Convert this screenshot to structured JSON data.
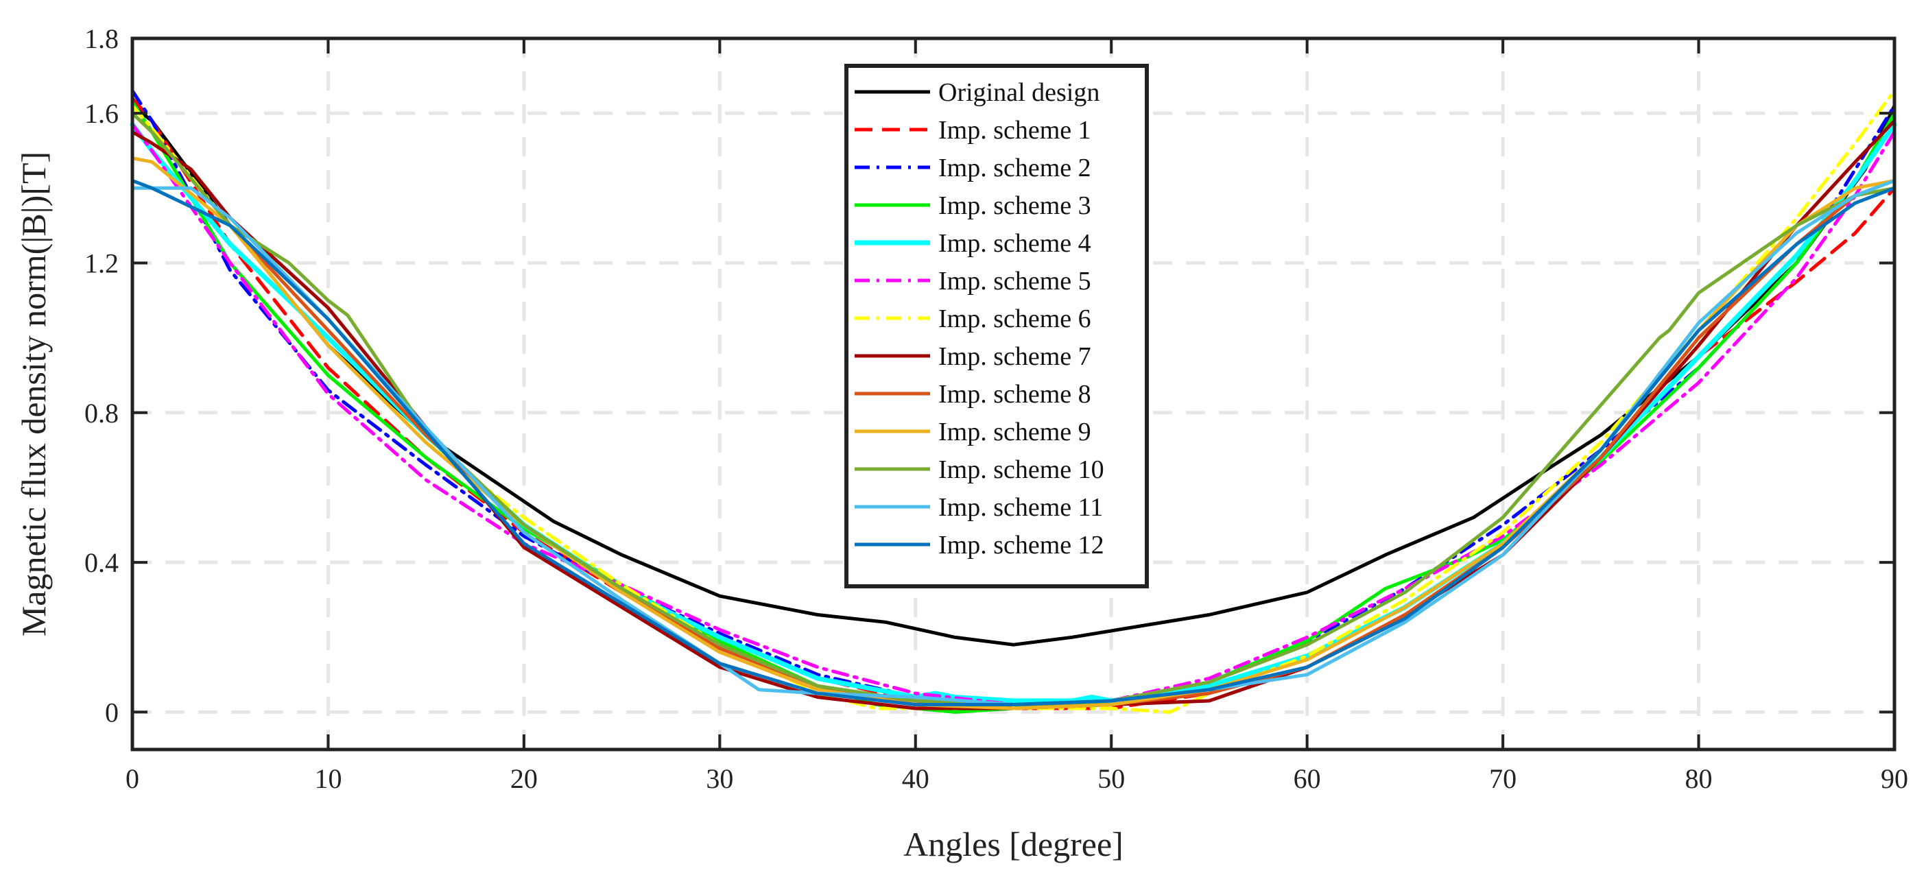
{
  "chart_data": {
    "type": "line",
    "title": "",
    "xlabel": "Angles [degree]",
    "ylabel": "Magnetic flux density norm(|B|)[T]",
    "xlim": [
      0,
      90
    ],
    "ylim": [
      -0.1,
      1.8
    ],
    "xticks": [
      0,
      10,
      20,
      30,
      40,
      50,
      60,
      70,
      80,
      90
    ],
    "xtick_labels": [
      "0",
      "10",
      "20",
      "30",
      "40",
      "50",
      "60",
      "70",
      "80",
      "90"
    ],
    "yticks": [
      0,
      0.4,
      0.8,
      1.2,
      1.6,
      1.8
    ],
    "ytick_labels": [
      "0",
      "0.4",
      "0.8",
      "1.2",
      "1.6",
      "1.8"
    ],
    "grid": true,
    "legend_position": "top-center",
    "series": [
      {
        "name": "Original design",
        "color": "#000000",
        "dash": "solid",
        "x": [
          0,
          1,
          5,
          10,
          15,
          21.5,
          25,
          30,
          35,
          38.5,
          42,
          45,
          48,
          51.5,
          55,
          60,
          64,
          68.5,
          72,
          75,
          80,
          85,
          88.5,
          90
        ],
        "y": [
          1.62,
          1.58,
          1.3,
          0.98,
          0.74,
          0.51,
          0.42,
          0.31,
          0.26,
          0.24,
          0.2,
          0.18,
          0.2,
          0.23,
          0.26,
          0.32,
          0.42,
          0.52,
          0.64,
          0.74,
          0.95,
          1.2,
          1.45,
          1.62
        ]
      },
      {
        "name": "Imp. scheme 1",
        "color": "#ff0000",
        "dash": "dashed",
        "x": [
          0,
          1,
          5,
          10,
          15,
          20,
          25,
          30,
          35,
          40,
          45,
          50,
          55,
          60,
          65,
          70,
          75,
          80,
          85,
          88,
          90
        ],
        "y": [
          1.64,
          1.58,
          1.25,
          0.92,
          0.68,
          0.48,
          0.32,
          0.2,
          0.09,
          0.03,
          0.01,
          0.01,
          0.05,
          0.15,
          0.28,
          0.45,
          0.68,
          0.95,
          1.15,
          1.28,
          1.4
        ]
      },
      {
        "name": "Imp. scheme 2",
        "color": "#0000ff",
        "dash": "dashdot",
        "x": [
          0,
          1,
          5,
          10,
          15,
          20,
          25,
          30,
          35,
          40,
          45,
          50,
          55,
          60,
          65,
          70,
          75,
          80,
          85,
          88,
          90
        ],
        "y": [
          1.66,
          1.58,
          1.18,
          0.86,
          0.66,
          0.47,
          0.33,
          0.21,
          0.1,
          0.04,
          0.02,
          0.03,
          0.08,
          0.19,
          0.33,
          0.5,
          0.7,
          0.92,
          1.2,
          1.45,
          1.62
        ]
      },
      {
        "name": "Imp. scheme 3",
        "color": "#00ee00",
        "dash": "solid",
        "x": [
          0,
          1,
          5,
          10,
          15,
          20,
          25,
          30,
          35,
          38,
          42,
          45,
          50,
          55,
          60,
          64,
          68,
          70,
          75,
          80,
          85,
          88,
          90
        ],
        "y": [
          1.63,
          1.55,
          1.2,
          0.9,
          0.68,
          0.49,
          0.34,
          0.19,
          0.07,
          0.02,
          0.0,
          0.01,
          0.03,
          0.08,
          0.19,
          0.33,
          0.41,
          0.46,
          0.67,
          0.92,
          1.2,
          1.42,
          1.6
        ]
      },
      {
        "name": "Imp. scheme 4",
        "color": "#00ffff",
        "dash": "solid",
        "x": [
          0,
          1,
          5,
          10,
          15,
          20,
          25,
          30,
          35,
          40,
          41,
          42,
          45,
          48,
          49,
          50,
          55,
          60,
          65,
          70,
          75,
          80,
          85,
          88,
          90
        ],
        "y": [
          1.57,
          1.5,
          1.25,
          1.0,
          0.74,
          0.5,
          0.33,
          0.2,
          0.09,
          0.04,
          0.05,
          0.04,
          0.03,
          0.03,
          0.04,
          0.03,
          0.07,
          0.15,
          0.28,
          0.45,
          0.68,
          0.95,
          1.22,
          1.42,
          1.57
        ]
      },
      {
        "name": "Imp. scheme 5",
        "color": "#ff00ff",
        "dash": "dashdot",
        "x": [
          0,
          1,
          5,
          10,
          15,
          20,
          25,
          30,
          35,
          40,
          45,
          50,
          55,
          60,
          65,
          70,
          75,
          80,
          85,
          88,
          90
        ],
        "y": [
          1.57,
          1.5,
          1.2,
          0.85,
          0.62,
          0.45,
          0.34,
          0.22,
          0.12,
          0.05,
          0.02,
          0.03,
          0.09,
          0.2,
          0.33,
          0.47,
          0.66,
          0.88,
          1.16,
          1.38,
          1.55
        ]
      },
      {
        "name": "Imp. scheme 6",
        "color": "#ffff00",
        "dash": "dashdot",
        "x": [
          0,
          1,
          5,
          10,
          15,
          20,
          25,
          30,
          35,
          38,
          45,
          50,
          53,
          55,
          60,
          65,
          70,
          75,
          80,
          85,
          88,
          90
        ],
        "y": [
          1.62,
          1.56,
          1.3,
          0.98,
          0.72,
          0.52,
          0.34,
          0.18,
          0.05,
          0.01,
          0.01,
          0.01,
          0.0,
          0.05,
          0.15,
          0.3,
          0.48,
          0.72,
          1.02,
          1.32,
          1.52,
          1.66
        ]
      },
      {
        "name": "Imp. scheme 7",
        "color": "#a00000",
        "dash": "solid",
        "x": [
          0,
          1,
          3,
          5,
          10,
          15,
          20,
          25,
          30,
          35,
          40,
          45,
          50,
          55,
          60,
          65,
          70,
          75,
          80,
          85,
          88,
          90
        ],
        "y": [
          1.55,
          1.52,
          1.45,
          1.32,
          1.08,
          0.76,
          0.44,
          0.28,
          0.12,
          0.04,
          0.01,
          0.01,
          0.02,
          0.03,
          0.12,
          0.26,
          0.42,
          0.68,
          0.98,
          1.3,
          1.47,
          1.58
        ]
      },
      {
        "name": "Imp. scheme 8",
        "color": "#d95319",
        "dash": "solid",
        "x": [
          0,
          1,
          5,
          10,
          15,
          20,
          25,
          30,
          35,
          40,
          45,
          50,
          55,
          60,
          65,
          70,
          75,
          80,
          85,
          88,
          90
        ],
        "y": [
          1.6,
          1.55,
          1.3,
          1.02,
          0.74,
          0.5,
          0.32,
          0.17,
          0.07,
          0.02,
          0.01,
          0.02,
          0.05,
          0.12,
          0.26,
          0.44,
          0.68,
          1.0,
          1.25,
          1.38,
          1.42
        ]
      },
      {
        "name": "Imp. scheme 9",
        "color": "#edb120",
        "dash": "solid",
        "x": [
          0,
          1,
          5,
          10,
          15,
          20,
          25,
          30,
          35,
          40,
          45,
          50,
          55,
          60,
          65,
          70,
          75,
          80,
          85,
          88,
          90
        ],
        "y": [
          1.48,
          1.47,
          1.3,
          0.98,
          0.72,
          0.5,
          0.32,
          0.16,
          0.06,
          0.02,
          0.01,
          0.02,
          0.06,
          0.14,
          0.28,
          0.45,
          0.7,
          1.02,
          1.3,
          1.4,
          1.42
        ]
      },
      {
        "name": "Imp. scheme 10",
        "color": "#77ac30",
        "dash": "solid",
        "x": [
          0,
          1,
          5,
          8,
          10,
          11,
          15,
          20,
          25,
          30,
          35,
          40,
          45,
          50,
          55,
          60,
          65,
          70,
          75,
          78,
          78.5,
          80,
          85,
          88,
          90
        ],
        "y": [
          1.6,
          1.55,
          1.3,
          1.2,
          1.1,
          1.06,
          0.75,
          0.5,
          0.33,
          0.18,
          0.07,
          0.03,
          0.02,
          0.03,
          0.08,
          0.18,
          0.32,
          0.52,
          0.82,
          1.0,
          1.02,
          1.12,
          1.3,
          1.38,
          1.4
        ]
      },
      {
        "name": "Imp. scheme 11",
        "color": "#4dbeee",
        "dash": "solid",
        "x": [
          0,
          1,
          3,
          5,
          10,
          15,
          20,
          25,
          30,
          32,
          35,
          40,
          45,
          50,
          55,
          60,
          65,
          70,
          75,
          80,
          85,
          88,
          90
        ],
        "y": [
          1.4,
          1.4,
          1.4,
          1.32,
          1.05,
          0.76,
          0.48,
          0.3,
          0.13,
          0.06,
          0.05,
          0.04,
          0.02,
          0.03,
          0.06,
          0.1,
          0.24,
          0.42,
          0.7,
          1.04,
          1.28,
          1.38,
          1.42
        ]
      },
      {
        "name": "Imp. scheme 12",
        "color": "#0072bd",
        "dash": "solid",
        "x": [
          0,
          1,
          5,
          10,
          15,
          20,
          25,
          30,
          35,
          40,
          45,
          50,
          55,
          60,
          65,
          70,
          75,
          80,
          85,
          88,
          90
        ],
        "y": [
          1.42,
          1.4,
          1.3,
          1.05,
          0.75,
          0.45,
          0.29,
          0.13,
          0.05,
          0.02,
          0.02,
          0.03,
          0.06,
          0.12,
          0.25,
          0.44,
          0.7,
          1.02,
          1.25,
          1.36,
          1.4
        ]
      }
    ]
  }
}
